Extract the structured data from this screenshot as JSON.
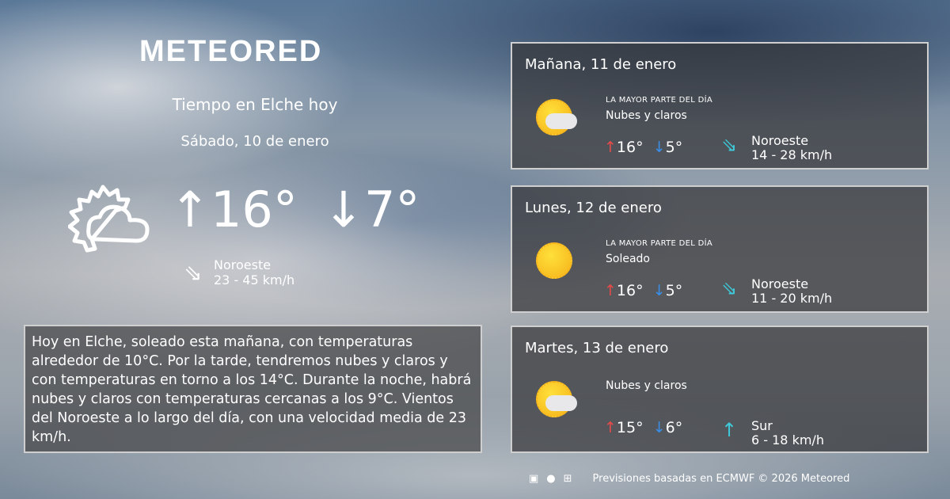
{
  "brand": {
    "logo": "METEORED"
  },
  "today": {
    "title": "Tiempo en Elche hoy",
    "date": "Sábado, 10 de enero",
    "max": "16°",
    "min": "7°",
    "icon": "partly-cloudy-outline-icon",
    "wind_dir": "Noroeste",
    "wind_speed": "23 - 45 km/h"
  },
  "description": "Hoy en Elche, soleado esta mañana, con temperaturas alrededor de 10°C. Por la tarde, tendremos nubes y claros y con temperaturas en torno a los 14°C. Durante la noche, habrá nubes y claros  con temperaturas cercanas a los 9°C. Vientos del Noroeste a lo largo del día, con una velocidad media de 23 km/h.",
  "forecast": [
    {
      "title": "Mañana, 11 de enero",
      "label": "LA MAYOR PARTE DEL DÍA",
      "condition": "Nubes y claros",
      "icon": "sun-cloud-icon",
      "max": "16°",
      "min": "5°",
      "wind_dir": "Noroeste",
      "wind_speed": "14 - 28 km/h"
    },
    {
      "title": "Lunes, 12 de enero",
      "label": "LA MAYOR PARTE DEL DÍA",
      "condition": "Soleado",
      "icon": "sun-icon",
      "max": "16°",
      "min": "5°",
      "wind_dir": "Noroeste",
      "wind_speed": "11 - 20 km/h"
    },
    {
      "title": "Martes, 13 de enero",
      "label": "",
      "condition": "Nubes y claros",
      "icon": "sun-cloud-icon",
      "max": "15°",
      "min": "6°",
      "wind_dir": "Sur",
      "wind_speed": "6 - 18 km/h"
    }
  ],
  "footer": {
    "text": "Previsiones basadas en ECMWF © 2026 Meteored",
    "icons": [
      "android-icon",
      "apple-icon",
      "windows-icon"
    ]
  },
  "colors": {
    "up": "#e84a4a",
    "down": "#3a8ee8",
    "wind": "#3ec8d8"
  }
}
